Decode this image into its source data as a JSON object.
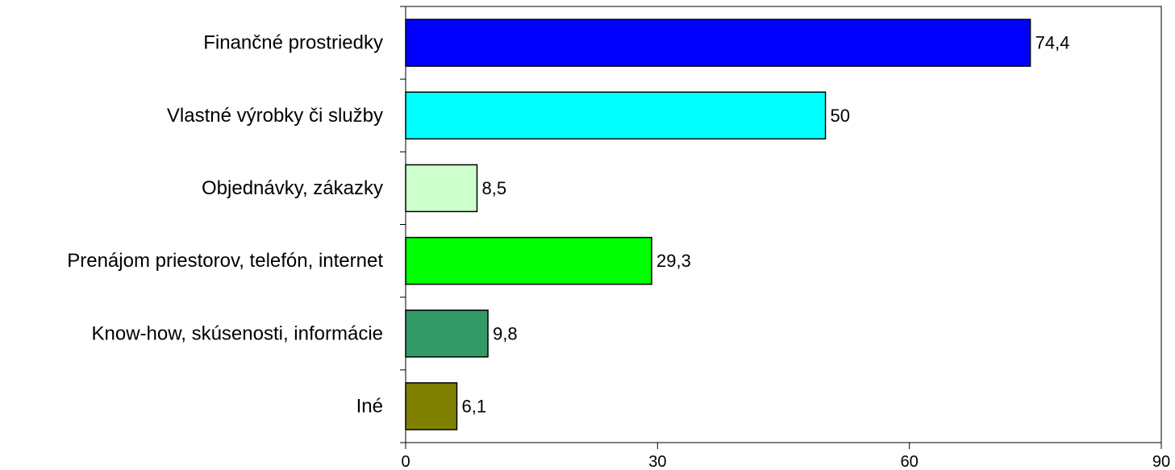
{
  "chart_data": {
    "type": "bar",
    "orientation": "horizontal",
    "title": "",
    "xlabel": "",
    "ylabel": "",
    "categories": [
      "Finančné prostriedky",
      "Vlastné výrobky či služby",
      "Objednávky, zákazky",
      "Prenájom priestorov, telefón, internet",
      "Know-how, skúsenosti, informácie",
      "Iné"
    ],
    "values": [
      74.4,
      50,
      8.5,
      29.3,
      9.8,
      6.1
    ],
    "value_labels": [
      "74,4",
      "50",
      "8,5",
      "29,3",
      "9,8",
      "6,1"
    ],
    "colors": [
      "#0000ff",
      "#00ffff",
      "#ccffcc",
      "#00ff00",
      "#339966",
      "#808000"
    ],
    "xlim": [
      0,
      90
    ],
    "xticks": [
      0,
      30,
      60,
      90
    ],
    "grid": false,
    "legend": "none"
  }
}
